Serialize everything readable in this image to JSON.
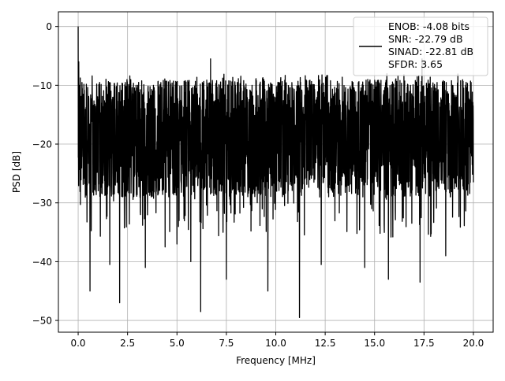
{
  "chart_data": {
    "type": "line",
    "xlabel": "Frequency [MHz]",
    "ylabel": "PSD [dB]",
    "xlim": [
      -1.0,
      21.0
    ],
    "ylim": [
      -52.0,
      2.5
    ],
    "xticks": [
      0.0,
      2.5,
      5.0,
      7.5,
      10.0,
      12.5,
      15.0,
      17.5,
      20.0
    ],
    "xtick_labels": [
      "0.0",
      "2.5",
      "5.0",
      "7.5",
      "10.0",
      "12.5",
      "15.0",
      "17.5",
      "20.0"
    ],
    "yticks": [
      0,
      -10,
      -20,
      -30,
      -40,
      -50
    ],
    "ytick_labels": [
      "0",
      "−10",
      "−20",
      "−30",
      "−40",
      "−50"
    ],
    "grid": true,
    "legend_position": "top-right",
    "series": [
      {
        "name": "ENOB: -4.08 bits\nSNR: -22.79 dB\nSINAD: -22.81 dB\nSFDR: 3.65",
        "color": "#000000",
        "x_range": [
          0.0,
          20.0
        ],
        "dense_noise": true,
        "band_upper_dB": -12,
        "band_lower_dB": -24,
        "notable_points": [
          {
            "x": 0.0,
            "y": 0.0
          },
          {
            "x": 0.03,
            "y": -6.0
          },
          {
            "x": 0.6,
            "y": -45.0
          },
          {
            "x": 1.6,
            "y": -40.5
          },
          {
            "x": 2.1,
            "y": -47.0
          },
          {
            "x": 3.4,
            "y": -41.0
          },
          {
            "x": 4.4,
            "y": -37.5
          },
          {
            "x": 5.0,
            "y": -37.0
          },
          {
            "x": 5.7,
            "y": -40.0
          },
          {
            "x": 6.2,
            "y": -48.5
          },
          {
            "x": 7.5,
            "y": -43.0
          },
          {
            "x": 9.6,
            "y": -45.0
          },
          {
            "x": 11.2,
            "y": -49.5
          },
          {
            "x": 12.3,
            "y": -40.5
          },
          {
            "x": 14.5,
            "y": -41.0
          },
          {
            "x": 15.7,
            "y": -43.0
          },
          {
            "x": 17.3,
            "y": -43.5
          },
          {
            "x": 18.6,
            "y": -39.0
          },
          {
            "x": 6.7,
            "y": -5.5
          },
          {
            "x": 17.4,
            "y": -5.5
          },
          {
            "x": 20.0,
            "y": -26.5
          }
        ]
      }
    ]
  }
}
